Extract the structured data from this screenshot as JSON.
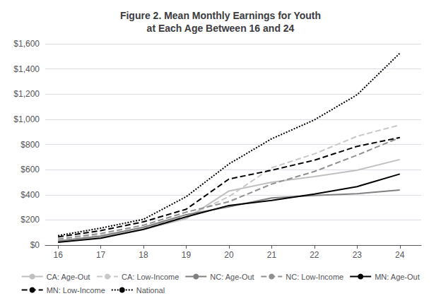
{
  "chart_data": {
    "type": "line",
    "title": "Figure 2. Mean Monthly Earnings for Youth\nat Each Age Between 16 and 24",
    "x": [
      16,
      17,
      18,
      19,
      20,
      21,
      22,
      23,
      24
    ],
    "xlim": [
      15.7,
      24.5
    ],
    "xticks": [
      16,
      17,
      18,
      19,
      20,
      21,
      22,
      23,
      24
    ],
    "ylim": [
      0,
      1600
    ],
    "yticks": [
      {
        "value": 0,
        "label": "$0"
      },
      {
        "value": 200,
        "label": "$200"
      },
      {
        "value": 400,
        "label": "$400"
      },
      {
        "value": 600,
        "label": "$600"
      },
      {
        "value": 800,
        "label": "$800"
      },
      {
        "value": 1000,
        "label": "$1,000"
      },
      {
        "value": 1200,
        "label": "$1,200"
      },
      {
        "value": 1400,
        "label": "$1,400"
      },
      {
        "value": 1600,
        "label": "$1,600"
      }
    ],
    "grid": true,
    "legend": "bottom",
    "series": [
      {
        "name": "CA: Age-Out",
        "color": "#c0c0c0",
        "line_style": "solid",
        "values": [
          28,
          65,
          125,
          210,
          430,
          500,
          545,
          595,
          680
        ]
      },
      {
        "name": "CA: Low-Income",
        "color": "#c8c8c8",
        "line_style": "dashed",
        "values": [
          38,
          78,
          138,
          225,
          385,
          615,
          725,
          865,
          955
        ]
      },
      {
        "name": "NC: Age-Out",
        "color": "#808080",
        "line_style": "solid",
        "values": [
          33,
          72,
          142,
          242,
          305,
          375,
          395,
          408,
          438
        ]
      },
      {
        "name": "NC: Low-Income",
        "color": "#909090",
        "line_style": "dashed",
        "values": [
          48,
          92,
          158,
          262,
          345,
          485,
          585,
          715,
          855
        ]
      },
      {
        "name": "MN: Age-Out",
        "color": "#000000",
        "line_style": "solid",
        "values": [
          22,
          55,
          125,
          225,
          315,
          355,
          405,
          465,
          565
        ]
      },
      {
        "name": "MN: Low-Income",
        "color": "#000000",
        "line_style": "dashed",
        "values": [
          65,
          115,
          185,
          285,
          525,
          595,
          675,
          785,
          855
        ]
      },
      {
        "name": "National",
        "color": "#000000",
        "line_style": "dotted",
        "values": [
          75,
          135,
          205,
          385,
          645,
          845,
          995,
          1195,
          1525
        ]
      }
    ]
  }
}
